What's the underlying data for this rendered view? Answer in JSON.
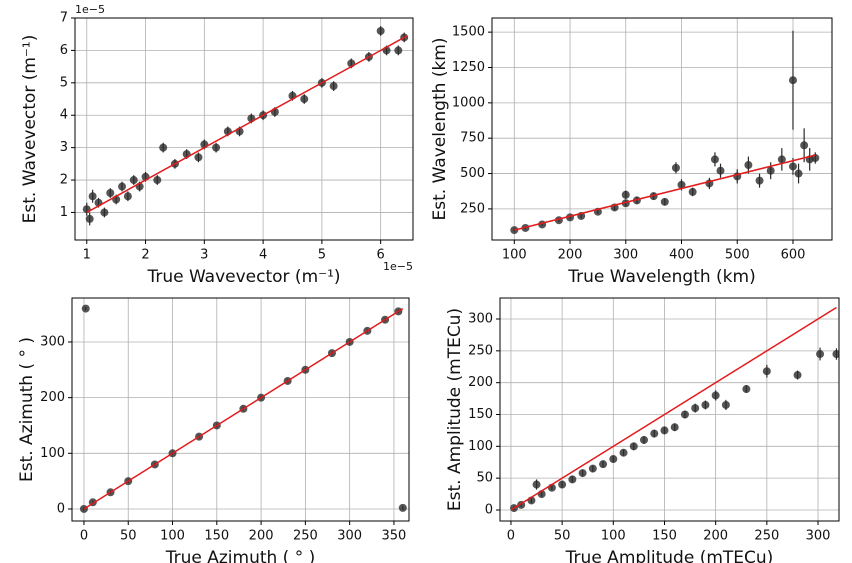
{
  "chart_data": [
    {
      "type": "scatter",
      "xlabel": "True Wavevector (m⁻¹)",
      "ylabel": "Est. Wavevector (m⁻¹)",
      "x_offset_label": "1e−5",
      "y_offset_label": "1e−5",
      "xlim": [
        0.8,
        6.55
      ],
      "ylim": [
        0.15,
        7.0
      ],
      "xticks": [
        1,
        2,
        3,
        4,
        5,
        6
      ],
      "yticks": [
        1,
        2,
        3,
        4,
        5,
        6,
        7
      ],
      "grid": true,
      "points": {
        "color": "#2b2b2b",
        "x": [
          1.0,
          1.05,
          1.1,
          1.2,
          1.3,
          1.4,
          1.5,
          1.6,
          1.7,
          1.8,
          1.9,
          2.0,
          2.2,
          2.3,
          2.5,
          2.7,
          2.9,
          3.0,
          3.2,
          3.4,
          3.6,
          3.8,
          4.0,
          4.2,
          4.5,
          4.7,
          5.0,
          5.2,
          5.5,
          5.8,
          6.0,
          6.1,
          6.3,
          6.4
        ],
        "y": [
          1.1,
          0.8,
          1.5,
          1.3,
          1.0,
          1.6,
          1.4,
          1.8,
          1.5,
          2.0,
          1.8,
          2.1,
          2.0,
          3.0,
          2.5,
          2.8,
          2.7,
          3.1,
          3.0,
          3.5,
          3.5,
          3.9,
          4.0,
          4.1,
          4.6,
          4.5,
          5.0,
          4.9,
          5.6,
          5.8,
          6.6,
          6.0,
          6.0,
          6.4
        ],
        "yerr": [
          0.2,
          0.2,
          0.2,
          0.15,
          0.15,
          0.15,
          0.15,
          0.15,
          0.15,
          0.15,
          0.15,
          0.15,
          0.15,
          0.15,
          0.15,
          0.15,
          0.15,
          0.15,
          0.15,
          0.15,
          0.15,
          0.15,
          0.15,
          0.15,
          0.15,
          0.15,
          0.15,
          0.15,
          0.15,
          0.15,
          0.15,
          0.15,
          0.15,
          0.15
        ]
      },
      "fit_line": {
        "color": "#e41a1c",
        "x": [
          1.0,
          6.45
        ],
        "y": [
          1.0,
          6.45
        ]
      }
    },
    {
      "type": "scatter",
      "xlabel": "True Wavelength (km)",
      "ylabel": "Est. Wavelength (km)",
      "xlim": [
        60,
        670
      ],
      "ylim": [
        30,
        1600
      ],
      "xticks": [
        100,
        200,
        300,
        400,
        500,
        600
      ],
      "yticks": [
        250,
        500,
        750,
        1000,
        1250,
        1500
      ],
      "grid": true,
      "points": {
        "color": "#2b2b2b",
        "x": [
          100,
          120,
          150,
          180,
          200,
          220,
          250,
          280,
          300,
          320,
          350,
          370,
          400,
          420,
          450,
          470,
          500,
          520,
          540,
          560,
          580,
          600,
          600,
          610,
          620,
          630,
          640,
          390,
          460,
          300
        ],
        "y": [
          100,
          115,
          140,
          170,
          190,
          200,
          230,
          260,
          290,
          310,
          340,
          300,
          420,
          370,
          430,
          520,
          480,
          560,
          450,
          520,
          600,
          550,
          1160,
          500,
          700,
          600,
          610,
          540,
          600,
          350
        ],
        "yerr": [
          10,
          10,
          10,
          12,
          12,
          15,
          15,
          20,
          20,
          25,
          25,
          25,
          40,
          30,
          40,
          50,
          50,
          60,
          50,
          60,
          80,
          60,
          350,
          70,
          120,
          80,
          40,
          40,
          50,
          30
        ]
      },
      "fit_line": {
        "color": "#e41a1c",
        "x": [
          100,
          640
        ],
        "y": [
          100,
          630
        ]
      }
    },
    {
      "type": "scatter",
      "xlabel": "True Azimuth ( ° )",
      "ylabel": "Est. Azimuth ( ° )",
      "xlim": [
        -13.5,
        367
      ],
      "ylim": [
        -21.6,
        379
      ],
      "xticks": [
        0,
        50,
        100,
        150,
        200,
        250,
        300,
        350
      ],
      "yticks": [
        0,
        100,
        200,
        300
      ],
      "grid": true,
      "points": {
        "color": "#2b2b2b",
        "x": [
          0,
          2,
          10,
          30,
          50,
          80,
          100,
          130,
          150,
          180,
          200,
          230,
          250,
          280,
          300,
          320,
          340,
          355,
          360
        ],
        "y": [
          0,
          360,
          12,
          30,
          50,
          80,
          100,
          130,
          150,
          180,
          200,
          230,
          250,
          280,
          300,
          320,
          340,
          355,
          2
        ],
        "yerr": [
          3,
          3,
          3,
          3,
          3,
          3,
          3,
          3,
          3,
          3,
          3,
          3,
          3,
          3,
          3,
          3,
          3,
          3,
          3
        ]
      },
      "fit_line": {
        "color": "#e41a1c",
        "x": [
          0,
          360
        ],
        "y": [
          0,
          360
        ]
      }
    },
    {
      "type": "scatter",
      "xlabel": "True Amplitude (mTECu)",
      "ylabel": "Est. Amplitude (mTECu)",
      "xlim": [
        -10.7,
        320.5
      ],
      "ylim": [
        -17.3,
        333
      ],
      "xticks": [
        0,
        50,
        100,
        150,
        200,
        250,
        300
      ],
      "yticks": [
        0,
        50,
        100,
        150,
        200,
        250,
        300
      ],
      "grid": true,
      "points": {
        "color": "#2b2b2b",
        "x": [
          3,
          10,
          20,
          30,
          40,
          50,
          60,
          70,
          80,
          90,
          100,
          110,
          120,
          130,
          140,
          150,
          160,
          170,
          180,
          190,
          200,
          210,
          230,
          250,
          280,
          302,
          318,
          25
        ],
        "y": [
          3,
          8,
          15,
          25,
          35,
          40,
          48,
          58,
          65,
          72,
          80,
          90,
          100,
          110,
          120,
          125,
          130,
          150,
          160,
          165,
          180,
          165,
          190,
          218,
          212,
          245,
          245,
          40
        ],
        "yerr": [
          3,
          3,
          4,
          4,
          4,
          5,
          5,
          5,
          5,
          5,
          5,
          5,
          6,
          6,
          6,
          6,
          6,
          6,
          7,
          7,
          8,
          8,
          6,
          10,
          7,
          10,
          9,
          8
        ]
      },
      "fit_line": {
        "color": "#e41a1c",
        "x": [
          0,
          318
        ],
        "y": [
          0,
          318
        ]
      }
    }
  ]
}
